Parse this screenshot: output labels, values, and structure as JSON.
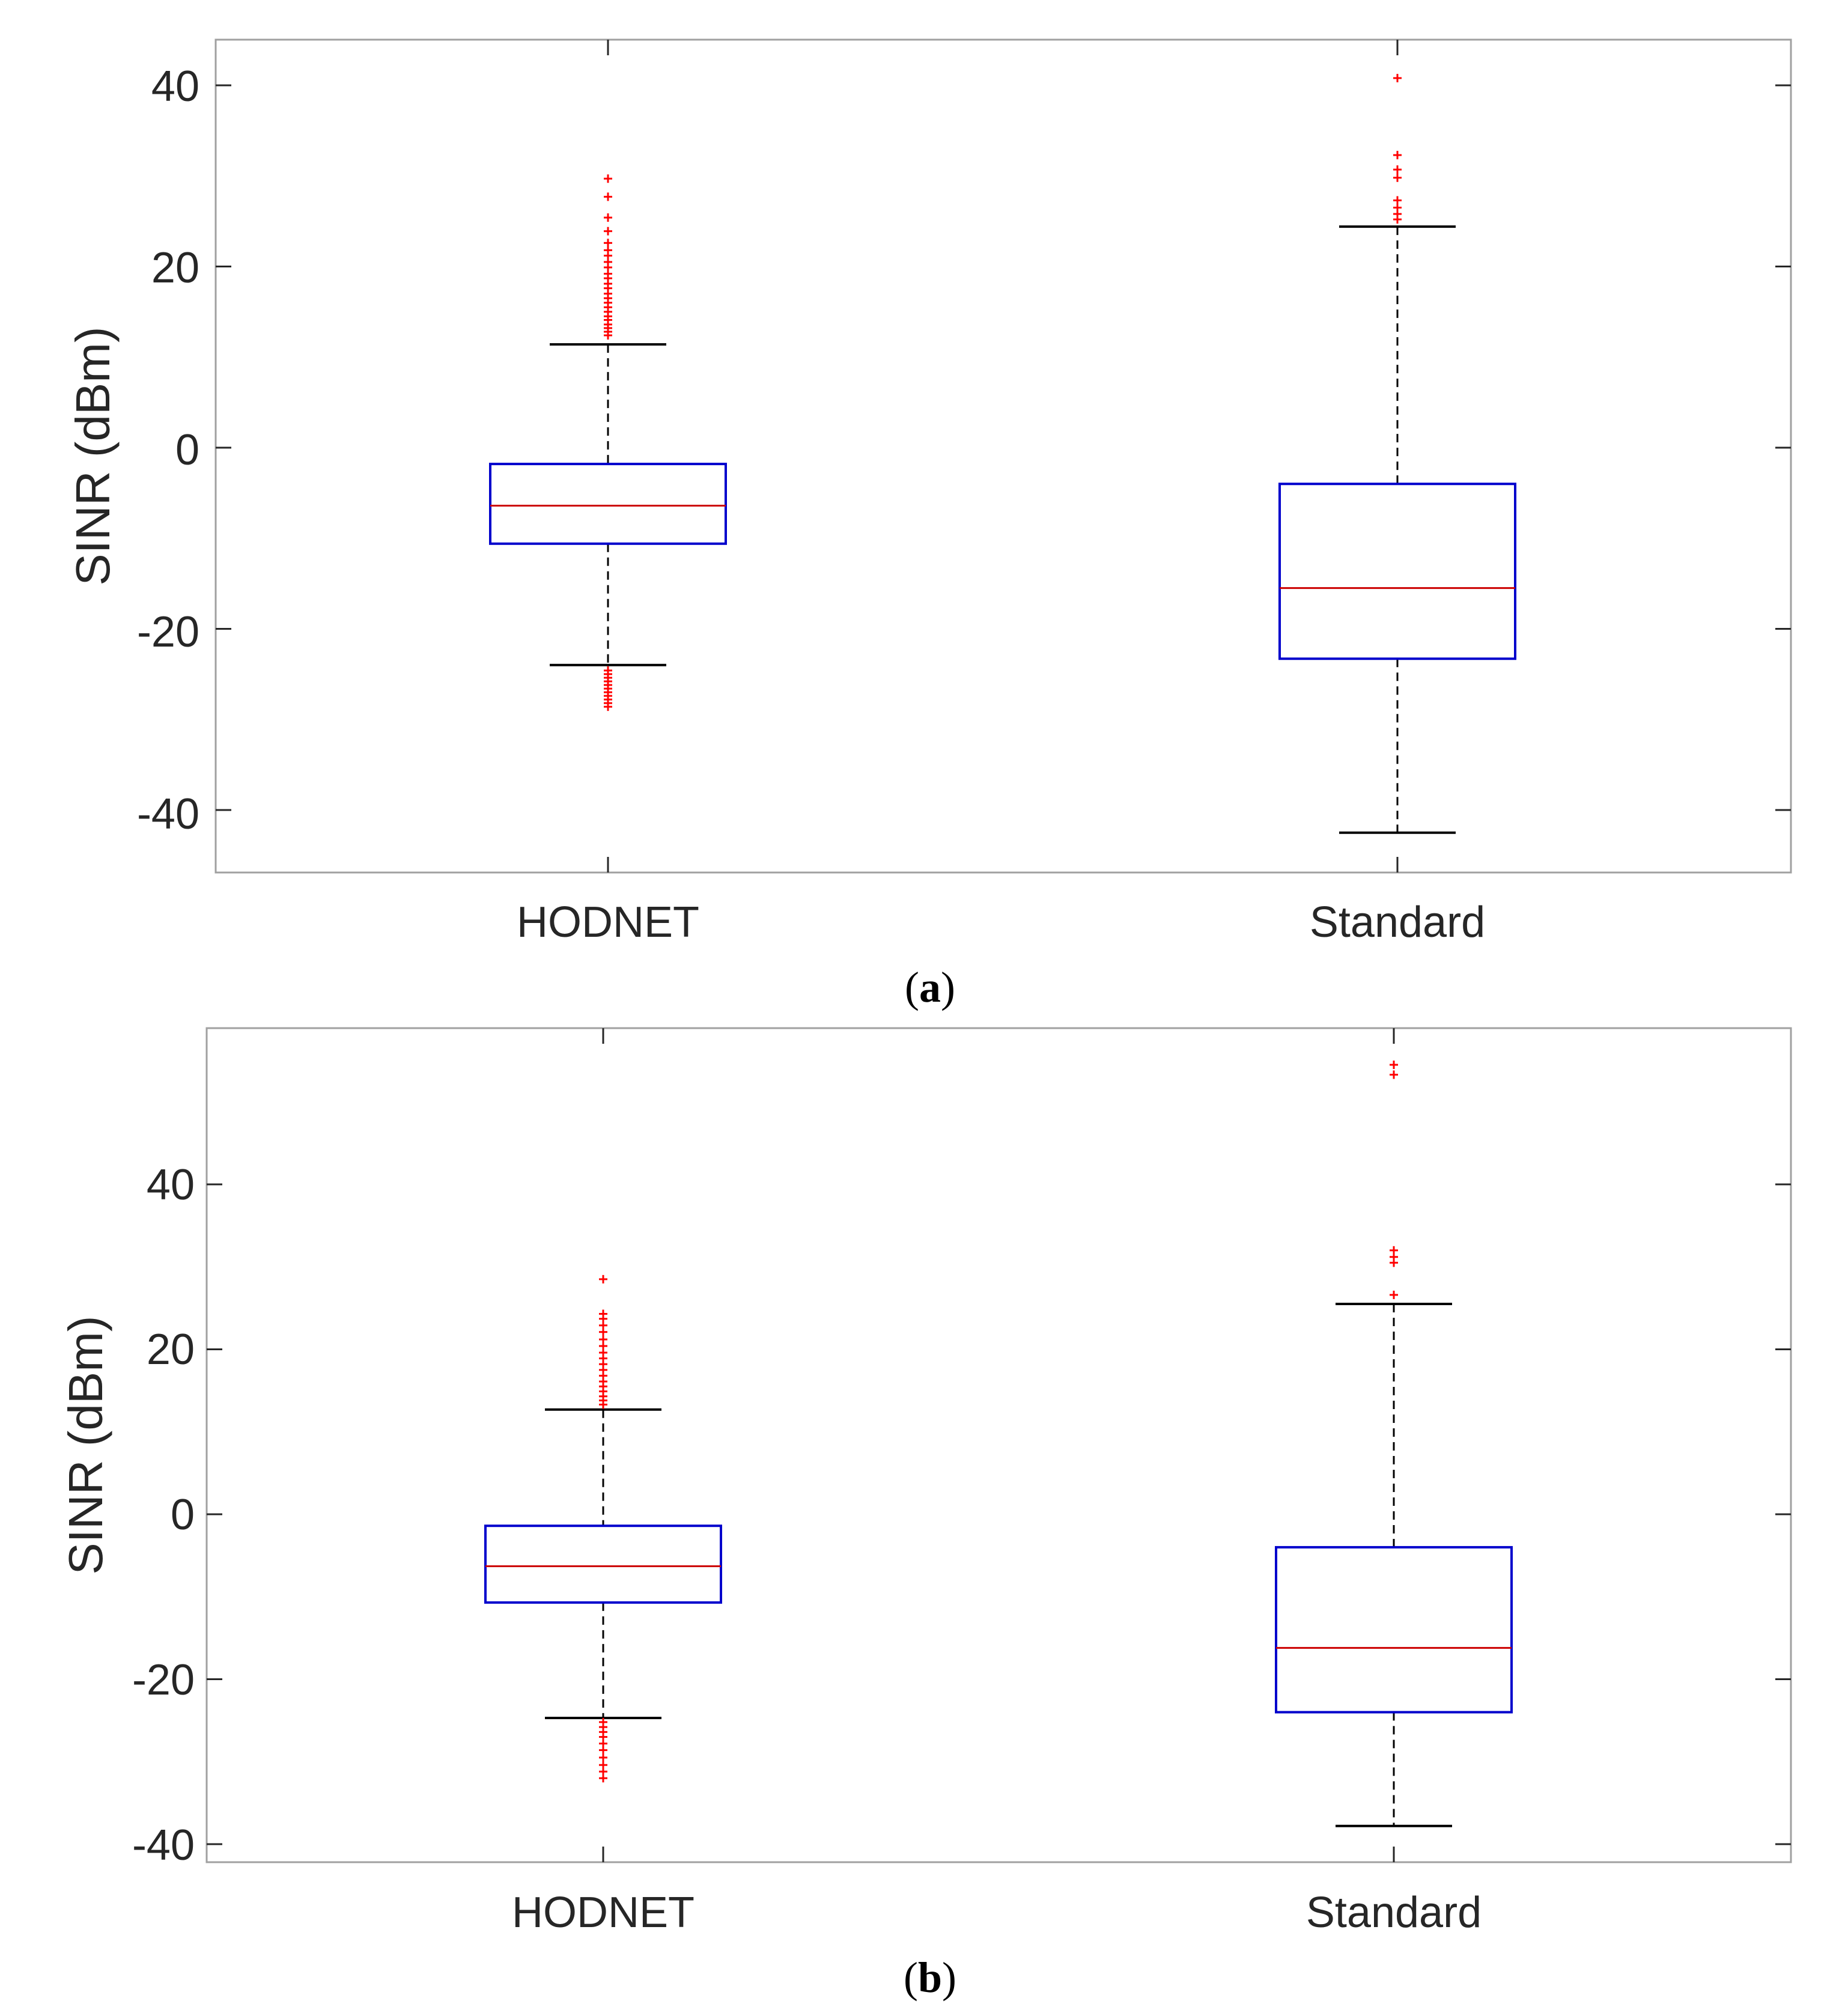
{
  "colors": {
    "axis": "#a0a0a0",
    "tick": "#262626",
    "box": "#0000cc",
    "median": "#cc0000",
    "whisker": "#000000",
    "outlier": "#ff0000"
  },
  "chart_data": [
    {
      "type": "boxplot",
      "panel": "a",
      "panel_open": "(",
      "panel_close": ")",
      "ylabel": "SINR (dBm)",
      "ylim": [
        -46.5,
        45
      ],
      "yticks": [
        40,
        20,
        0,
        -20,
        -40
      ],
      "ytick_labels": [
        "40",
        "20",
        "0",
        "-20",
        "-40"
      ],
      "categories": [
        "HODNET",
        "Standard"
      ],
      "series": [
        {
          "name": "HODNET",
          "q1": -10.6,
          "median": -6.4,
          "q3": -1.8,
          "whisker_low": -24.0,
          "whisker_high": 11.4,
          "outliers": [
            29.7,
            27.7,
            25.4,
            23.9,
            22.6,
            21.8,
            21.2,
            20.5,
            19.9,
            19.2,
            18.7,
            18.1,
            17.6,
            17.0,
            16.5,
            16.0,
            15.5,
            15.0,
            14.5,
            14.1,
            13.6,
            13.2,
            12.8,
            12.4,
            -24.6,
            -25.0,
            -25.4,
            -25.8,
            -26.2,
            -26.6,
            -27.0,
            -27.4,
            -27.8,
            -28.2,
            -28.6
          ]
        },
        {
          "name": "Standard",
          "q1": -23.3,
          "median": -15.5,
          "q3": -4.0,
          "whisker_low": -42.5,
          "whisker_high": 24.4,
          "outliers": [
            40.8,
            32.3,
            30.7,
            29.8,
            27.3,
            26.5,
            25.8,
            25.2
          ]
        }
      ]
    },
    {
      "type": "boxplot",
      "panel": "b",
      "panel_open": "(",
      "panel_close": ")",
      "ylabel": "SINR (dBm)",
      "ylim": [
        -42,
        58
      ],
      "yticks": [
        40,
        20,
        0,
        -20,
        -40
      ],
      "ytick_labels": [
        "40",
        "20",
        "0",
        "-20",
        "-40"
      ],
      "categories": [
        "HODNET",
        "Standard"
      ],
      "series": [
        {
          "name": "HODNET",
          "q1": -10.7,
          "median": -6.3,
          "q3": -1.4,
          "whisker_low": -24.7,
          "whisker_high": 12.7,
          "outliers": [
            28.5,
            24.3,
            23.7,
            22.9,
            22.1,
            21.2,
            20.4,
            19.6,
            18.9,
            18.2,
            17.5,
            16.8,
            16.1,
            15.5,
            14.9,
            14.3,
            13.8,
            13.3,
            -25.2,
            -25.8,
            -26.4,
            -27.0,
            -27.8,
            -28.6,
            -29.5,
            -30.4,
            -31.2,
            -32.0
          ]
        },
        {
          "name": "Standard",
          "q1": -24.0,
          "median": -16.2,
          "q3": -4.0,
          "whisker_low": -37.8,
          "whisker_high": 25.5,
          "outliers": [
            54.5,
            53.3,
            32.0,
            31.2,
            30.5,
            26.6
          ]
        }
      ]
    }
  ]
}
